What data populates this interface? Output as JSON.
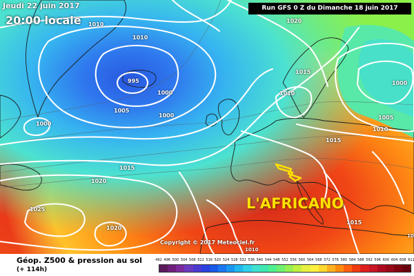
{
  "header": {
    "date_label": "Jeudi 22 juin 2017",
    "time_label": "20:00 locale",
    "run_label": "Run GFS 0 Z du Dimanche 18 juin 2017"
  },
  "annotations": {
    "callout_text": "L'AFRICANO",
    "copyright": "Copyright © 2017 Meteociel.fr"
  },
  "isobar_labels": [
    {
      "text": "1010"
    },
    {
      "text": "1010"
    },
    {
      "text": "1020"
    },
    {
      "text": "995"
    },
    {
      "text": "1000"
    },
    {
      "text": "1005"
    },
    {
      "text": "1000"
    },
    {
      "text": "1000"
    },
    {
      "text": "1015"
    },
    {
      "text": "1010"
    },
    {
      "text": "1000"
    },
    {
      "text": "1005"
    },
    {
      "text": "1010"
    },
    {
      "text": "1015"
    },
    {
      "text": "1015"
    },
    {
      "text": "1020"
    },
    {
      "text": "1025"
    },
    {
      "text": "1020"
    },
    {
      "text": "1015"
    },
    {
      "text": "1010"
    },
    {
      "text": "1015"
    }
  ],
  "legend": {
    "title": "Géop. Z500 & pression au sol",
    "subtitle": "(+ 114h)",
    "scale_labels": [
      "492",
      "496",
      "500",
      "504",
      "508",
      "512",
      "516",
      "520",
      "524",
      "528",
      "532",
      "536",
      "540",
      "544",
      "548",
      "552",
      "556",
      "560",
      "564",
      "568",
      "572",
      "576",
      "580",
      "584",
      "588",
      "592",
      "596",
      "600",
      "604",
      "608",
      "612"
    ],
    "scale_colors": [
      "#5a1a5a",
      "#6e1f7a",
      "#7a2a9a",
      "#6a3ac0",
      "#4a3ad0",
      "#2a40e0",
      "#1a5ae8",
      "#1a78f0",
      "#1a98f0",
      "#20b8ee",
      "#30d0e8",
      "#40e0d0",
      "#40e8b0",
      "#50f090",
      "#70f070",
      "#98f050",
      "#c0f040",
      "#e8f040",
      "#fff040",
      "#ffd830",
      "#ffb020",
      "#ff8a10",
      "#ff6010",
      "#f03a10",
      "#e01e20",
      "#c81424",
      "#b00a20",
      "#980818",
      "#800410",
      "#6a020c"
    ]
  }
}
